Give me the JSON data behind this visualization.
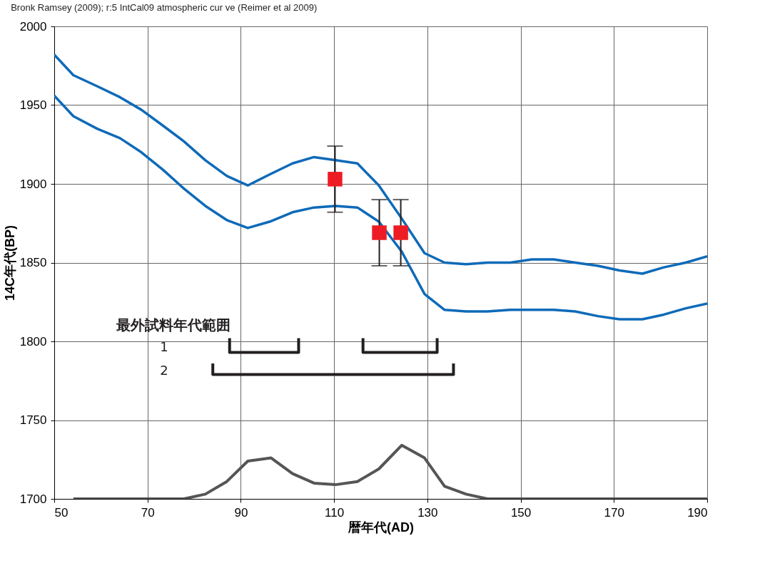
{
  "chart_data": {
    "type": "line",
    "title": "Bronk Ramsey (2009); r:5 IntCal09 atmospheric cur ve (Reimer et al 2009)",
    "xlabel": "暦年代(AD)",
    "ylabel": "14C年代(BP)",
    "xlim": [
      50,
      190
    ],
    "xticks": [
      50,
      70,
      90,
      110,
      130,
      150,
      170,
      190
    ],
    "ylim": [
      1700,
      2000
    ],
    "yticks": [
      1700,
      1750,
      1800,
      1850,
      1900,
      1950,
      2000
    ],
    "grid": true,
    "line_style": "solid",
    "series": [
      {
        "color": "#0e6ab8",
        "x": [
          50,
          54.1,
          59.2,
          64.1,
          68.7,
          73.3,
          77.8,
          82.4,
          87,
          91.5,
          96.2,
          101.1,
          105.7,
          110.3,
          115,
          119.6,
          124.5,
          129.4,
          133.7,
          138.3,
          142.9,
          147.8,
          152.4,
          157.1,
          161.7,
          166.6,
          171.2,
          176.1,
          180.7,
          185.4,
          190
        ],
        "values": [
          1982,
          1969,
          1962,
          1955,
          1947,
          1937,
          1927,
          1915,
          1905,
          1899,
          1906,
          1913,
          1917,
          1915,
          1913,
          1899,
          1878,
          1856,
          1850,
          1849,
          1850,
          1850,
          1852,
          1852,
          1850,
          1848,
          1845,
          1843,
          1847,
          1850,
          1854
        ]
      },
      {
        "color": "#0e6ab8",
        "x": [
          50,
          54.1,
          59.2,
          64.1,
          68.7,
          73.3,
          77.8,
          82.4,
          87,
          91.5,
          96.2,
          101.1,
          105.7,
          110.3,
          115,
          119.6,
          124.5,
          129.4,
          133.7,
          138.3,
          142.9,
          147.8,
          152.4,
          157.1,
          161.7,
          166.6,
          171.2,
          176.1,
          180.7,
          185.4,
          190
        ],
        "values": [
          1956,
          1943,
          1935,
          1929,
          1920,
          1909,
          1897,
          1886,
          1877,
          1872,
          1876,
          1882,
          1885,
          1886,
          1885,
          1876,
          1857,
          1830,
          1820,
          1819,
          1819,
          1820,
          1820,
          1820,
          1819,
          1816,
          1814,
          1814,
          1817,
          1821,
          1824
        ]
      },
      {
        "color": "#555555",
        "x": [
          54.1,
          77.8,
          82.4,
          87,
          91.5,
          96.5,
          101.1,
          105.7,
          110.3,
          115,
          119.6,
          124.5,
          129.4,
          133.7,
          138.3,
          142.9,
          190
        ],
        "values": [
          1700,
          1700,
          1703,
          1711,
          1724,
          1726,
          1716,
          1710,
          1709,
          1711,
          1719,
          1734,
          1726,
          1708,
          1703,
          1700,
          1700
        ]
      },
      {
        "color": "#231f20",
        "x": [
          87.6,
          87.6,
          102.4,
          102.4
        ],
        "values": [
          1802,
          1793,
          1793,
          1802
        ]
      },
      {
        "color": "#231f20",
        "x": [
          116.2,
          116.2,
          132.1,
          132.1
        ],
        "values": [
          1802,
          1793,
          1793,
          1802
        ]
      },
      {
        "color": "#231f20",
        "x": [
          84,
          84,
          135.6,
          135.6
        ],
        "values": [
          1786,
          1779,
          1779,
          1786
        ]
      },
      {
        "type": "scatter",
        "marker": "square",
        "color": "#ed1c24",
        "x": [
          110.2,
          119.7,
          124.3
        ],
        "values": [
          1903,
          1869,
          1869
        ],
        "errors": [
          21,
          21,
          21
        ]
      }
    ],
    "annotations": [
      "最外試料年代範囲",
      "1",
      "2"
    ]
  }
}
